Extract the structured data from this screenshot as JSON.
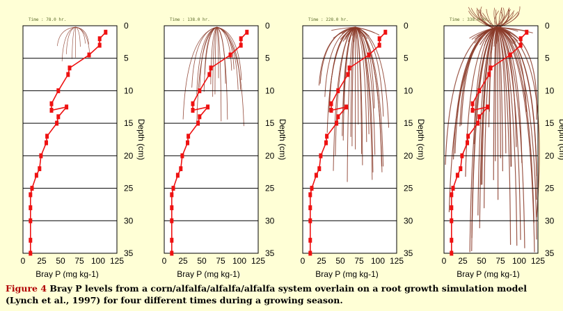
{
  "caption": {
    "figure_label": "Figure 4",
    "text": "Bray P levels from a corn/alfalfa/alfalfa/alfalfa system overlain on a root growth simulation model (Lynch et al., 1997) for four different times during a growing season."
  },
  "colors": {
    "series": "#ee1111",
    "roots": "#8a3a28",
    "background": "#ffffd6"
  },
  "chart_data": [
    {
      "type": "line",
      "time_label": "Time : 78.0 hr.",
      "root_extent": 0.15,
      "xlabel": "Bray P (mg kg-1)",
      "ylabel": "Depth (cm)",
      "xlim": [
        0,
        125
      ],
      "ylim": [
        0,
        35
      ],
      "xticks": [
        "0",
        "25",
        "50",
        "75",
        "100",
        "125"
      ],
      "yticks": [
        "0",
        "5",
        "10",
        "15",
        "20",
        "25",
        "30",
        "35"
      ],
      "series": [
        {
          "x": [
            110,
            102,
            102,
            88,
            62,
            60,
            47,
            38,
            38,
            58,
            47,
            45,
            32,
            31,
            24,
            22,
            18,
            12,
            10,
            10,
            10,
            10,
            10
          ],
          "y": [
            1,
            2,
            3,
            4.5,
            6.5,
            7.5,
            10,
            12,
            13,
            12.5,
            14,
            15,
            17,
            18,
            20,
            22,
            23,
            25,
            26,
            28,
            30,
            33,
            35
          ]
        }
      ]
    },
    {
      "type": "line",
      "time_label": "Time : 138.0 hr.",
      "root_extent": 0.45,
      "xlabel": "Bray P (mg kg-1)",
      "ylabel": "Depth (cm)",
      "xlim": [
        0,
        125
      ],
      "ylim": [
        0,
        35
      ],
      "xticks": [
        "0",
        "25",
        "50",
        "75",
        "100",
        "125"
      ],
      "yticks": [
        "0",
        "5",
        "10",
        "15",
        "20",
        "25",
        "30",
        "35"
      ],
      "series": [
        {
          "x": [
            110,
            102,
            102,
            88,
            62,
            60,
            47,
            38,
            38,
            58,
            47,
            45,
            32,
            31,
            24,
            22,
            18,
            12,
            10,
            10,
            10,
            10,
            10
          ],
          "y": [
            1,
            2,
            3,
            4.5,
            6.5,
            7.5,
            10,
            12,
            13,
            12.5,
            14,
            15,
            17,
            18,
            20,
            22,
            23,
            25,
            26,
            28,
            30,
            33,
            35
          ]
        }
      ]
    },
    {
      "type": "line",
      "time_label": "Time : 228.0 hr.",
      "root_extent": 0.7,
      "xlabel": "Bray P (mg kg-1)",
      "ylabel": "Depth (cm)",
      "xlim": [
        0,
        125
      ],
      "ylim": [
        0,
        35
      ],
      "xticks": [
        "0",
        "25",
        "50",
        "75",
        "100",
        "125"
      ],
      "yticks": [
        "0",
        "5",
        "10",
        "15",
        "20",
        "25",
        "30",
        "35"
      ],
      "series": [
        {
          "x": [
            110,
            102,
            102,
            88,
            62,
            60,
            47,
            38,
            38,
            58,
            47,
            45,
            32,
            31,
            24,
            22,
            18,
            12,
            10,
            10,
            10,
            10,
            10
          ],
          "y": [
            1,
            2,
            3,
            4.5,
            6.5,
            7.5,
            10,
            12,
            13,
            12.5,
            14,
            15,
            17,
            18,
            20,
            22,
            23,
            25,
            26,
            28,
            30,
            33,
            35
          ]
        }
      ]
    },
    {
      "type": "line",
      "time_label": "Time : 338.0 hr.",
      "root_extent": 1.0,
      "xlabel": "Bray P (mg kg-1)",
      "ylabel": "Depth (cm)",
      "xlim": [
        0,
        125
      ],
      "ylim": [
        0,
        35
      ],
      "xticks": [
        "0",
        "25",
        "50",
        "75",
        "100",
        "125"
      ],
      "yticks": [
        "0",
        "5",
        "10",
        "15",
        "20",
        "25",
        "30",
        "35"
      ],
      "series": [
        {
          "x": [
            110,
            102,
            102,
            88,
            62,
            60,
            47,
            38,
            38,
            58,
            47,
            45,
            32,
            31,
            24,
            22,
            18,
            12,
            10,
            10,
            10,
            10,
            10
          ],
          "y": [
            1,
            2,
            3,
            4.5,
            6.5,
            7.5,
            10,
            12,
            13,
            12.5,
            14,
            15,
            17,
            18,
            20,
            22,
            23,
            25,
            26,
            28,
            30,
            33,
            35
          ]
        }
      ]
    }
  ]
}
